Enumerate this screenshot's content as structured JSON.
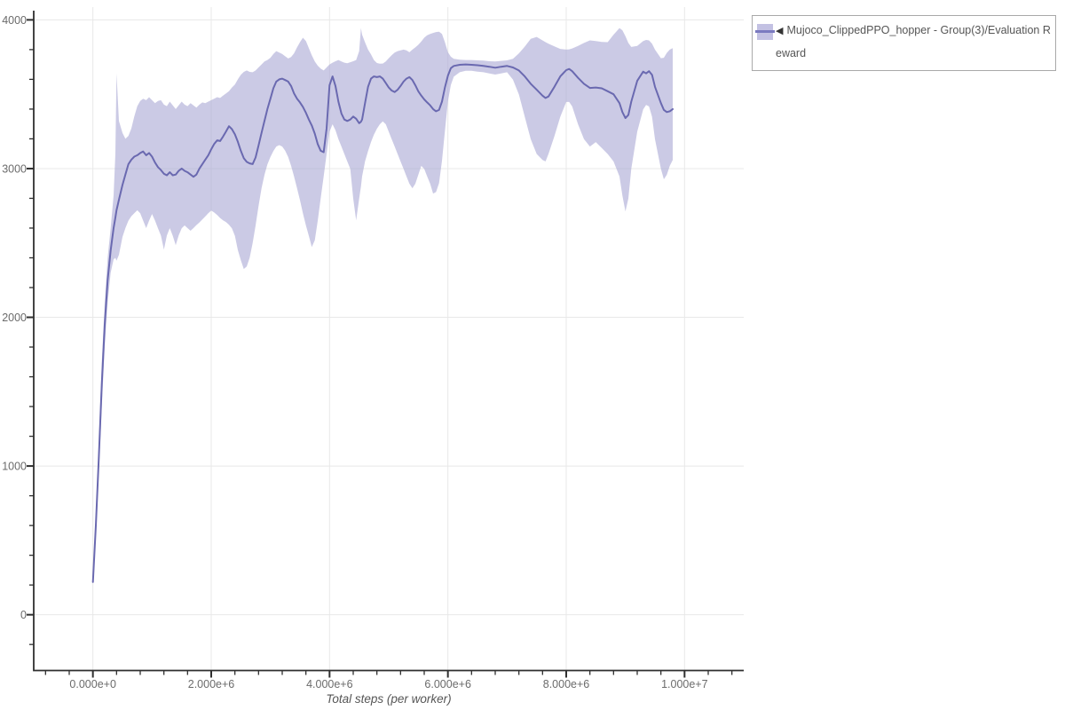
{
  "colors": {
    "mean_line": "#6a69b0",
    "band_fill": "#a8a6d3",
    "band_opacity": 0.6,
    "legend_swatch_fill": "#c3c1e3",
    "legend_swatch_line": "#7b7ac0",
    "grid": "#e8e8e8",
    "axis": "#2f2f2f",
    "tick_label": "#6b6b6b",
    "legend_border": "#a9a9a9",
    "legend_text": "#555555"
  },
  "legend": {
    "marker": "◀",
    "label": "Mujoco_ClippedPPO_hopper - Group(3)/Evaluation Reward"
  },
  "chart_data": {
    "type": "line",
    "title": "",
    "xlabel": "Total steps (per worker)",
    "ylabel": "",
    "grid": true,
    "legend_position": "top-right-outside",
    "x_multiplier": 1000000,
    "xlim_e6": [
      -1,
      11
    ],
    "ylim": [
      -375,
      4050
    ],
    "x_axis": {
      "tick_values_e6": [
        0,
        2,
        4,
        6,
        8,
        10
      ],
      "tick_labels": [
        "0.000e+0",
        "2.000e+6",
        "4.000e+6",
        "6.000e+6",
        "8.000e+6",
        "1.000e+7"
      ],
      "minor_step_e6": 0.4,
      "minor_range_e6": [
        -0.8,
        10.8
      ]
    },
    "y_axis": {
      "tick_values": [
        0,
        1000,
        2000,
        3000,
        4000
      ],
      "tick_labels": [
        "0",
        "1000",
        "2000",
        "3000",
        "4000"
      ],
      "minor_step": 200,
      "minor_range": [
        -200,
        4000
      ]
    },
    "series": [
      {
        "name": "Mujoco_ClippedPPO_hopper - Group(3)/Evaluation Reward",
        "style": "mean-with-confidence-band",
        "x_e6": [
          0,
          0.05,
          0.1,
          0.15,
          0.2,
          0.25,
          0.3,
          0.35,
          0.38,
          0.4,
          0.44,
          0.5,
          0.55,
          0.6,
          0.65,
          0.7,
          0.75,
          0.8,
          0.85,
          0.9,
          0.95,
          1.0,
          1.05,
          1.1,
          1.15,
          1.2,
          1.25,
          1.3,
          1.35,
          1.4,
          1.45,
          1.5,
          1.55,
          1.6,
          1.65,
          1.7,
          1.75,
          1.8,
          1.85,
          1.9,
          1.95,
          2.0,
          2.05,
          2.1,
          2.15,
          2.2,
          2.25,
          2.3,
          2.35,
          2.4,
          2.45,
          2.5,
          2.55,
          2.6,
          2.65,
          2.7,
          2.75,
          2.8,
          2.85,
          2.9,
          2.95,
          3.0,
          3.05,
          3.1,
          3.15,
          3.2,
          3.25,
          3.3,
          3.35,
          3.4,
          3.45,
          3.5,
          3.55,
          3.6,
          3.65,
          3.7,
          3.75,
          3.8,
          3.85,
          3.9,
          3.95,
          4.0,
          4.05,
          4.1,
          4.15,
          4.2,
          4.25,
          4.3,
          4.35,
          4.4,
          4.45,
          4.5,
          4.53,
          4.55,
          4.6,
          4.65,
          4.7,
          4.75,
          4.8,
          4.85,
          4.9,
          4.95,
          5.0,
          5.05,
          5.1,
          5.15,
          5.2,
          5.25,
          5.3,
          5.35,
          5.4,
          5.45,
          5.5,
          5.55,
          5.6,
          5.65,
          5.7,
          5.75,
          5.8,
          5.85,
          5.9,
          5.95,
          6.0,
          6.05,
          6.1,
          6.2,
          6.3,
          6.4,
          6.5,
          6.6,
          6.7,
          6.8,
          6.9,
          7.0,
          7.1,
          7.2,
          7.3,
          7.4,
          7.5,
          7.6,
          7.65,
          7.7,
          7.8,
          7.9,
          8.0,
          8.05,
          8.1,
          8.2,
          8.3,
          8.4,
          8.5,
          8.6,
          8.7,
          8.8,
          8.9,
          8.95,
          9.0,
          9.05,
          9.1,
          9.2,
          9.3,
          9.35,
          9.4,
          9.45,
          9.5,
          9.6,
          9.65,
          9.7,
          9.75,
          9.8
        ],
        "mean": [
          220,
          600,
          1050,
          1550,
          1950,
          2250,
          2450,
          2600,
          2670,
          2720,
          2790,
          2890,
          2960,
          3030,
          3060,
          3080,
          3090,
          3105,
          3115,
          3090,
          3105,
          3080,
          3040,
          3010,
          2990,
          2965,
          2955,
          2975,
          2955,
          2960,
          2985,
          3000,
          2985,
          2975,
          2960,
          2945,
          2960,
          3000,
          3030,
          3060,
          3090,
          3130,
          3165,
          3190,
          3185,
          3215,
          3250,
          3285,
          3265,
          3230,
          3180,
          3120,
          3070,
          3045,
          3035,
          3030,
          3075,
          3155,
          3240,
          3320,
          3400,
          3470,
          3540,
          3585,
          3600,
          3605,
          3595,
          3585,
          3555,
          3505,
          3470,
          3445,
          3415,
          3375,
          3330,
          3290,
          3235,
          3165,
          3120,
          3110,
          3270,
          3560,
          3620,
          3555,
          3450,
          3370,
          3330,
          3320,
          3330,
          3350,
          3335,
          3305,
          3315,
          3330,
          3440,
          3550,
          3605,
          3620,
          3615,
          3620,
          3605,
          3575,
          3545,
          3525,
          3515,
          3530,
          3555,
          3585,
          3605,
          3615,
          3595,
          3560,
          3520,
          3490,
          3465,
          3445,
          3425,
          3400,
          3385,
          3395,
          3450,
          3545,
          3625,
          3675,
          3690,
          3698,
          3700,
          3698,
          3695,
          3690,
          3685,
          3678,
          3685,
          3690,
          3680,
          3660,
          3620,
          3570,
          3530,
          3490,
          3475,
          3485,
          3550,
          3620,
          3662,
          3670,
          3655,
          3610,
          3570,
          3542,
          3545,
          3540,
          3520,
          3500,
          3440,
          3380,
          3340,
          3360,
          3450,
          3590,
          3652,
          3640,
          3655,
          3630,
          3550,
          3440,
          3395,
          3380,
          3385,
          3400
        ],
        "band_upper": [
          230,
          660,
          1150,
          1700,
          2100,
          2400,
          2600,
          2820,
          3100,
          3640,
          3320,
          3240,
          3200,
          3220,
          3270,
          3350,
          3420,
          3455,
          3470,
          3460,
          3480,
          3460,
          3440,
          3455,
          3460,
          3430,
          3420,
          3450,
          3425,
          3400,
          3425,
          3450,
          3430,
          3420,
          3440,
          3425,
          3410,
          3430,
          3445,
          3440,
          3450,
          3460,
          3470,
          3480,
          3475,
          3490,
          3505,
          3520,
          3545,
          3565,
          3600,
          3630,
          3650,
          3660,
          3650,
          3648,
          3660,
          3680,
          3700,
          3720,
          3730,
          3745,
          3770,
          3790,
          3780,
          3770,
          3755,
          3740,
          3750,
          3775,
          3815,
          3850,
          3880,
          3858,
          3810,
          3762,
          3720,
          3692,
          3672,
          3660,
          3680,
          3700,
          3712,
          3722,
          3730,
          3720,
          3712,
          3708,
          3715,
          3722,
          3730,
          3790,
          3945,
          3900,
          3848,
          3800,
          3768,
          3730,
          3710,
          3705,
          3706,
          3720,
          3742,
          3762,
          3780,
          3790,
          3795,
          3800,
          3795,
          3782,
          3800,
          3815,
          3832,
          3855,
          3880,
          3896,
          3905,
          3912,
          3918,
          3920,
          3905,
          3850,
          3782,
          3752,
          3738,
          3732,
          3730,
          3730,
          3728,
          3726,
          3722,
          3720,
          3724,
          3728,
          3738,
          3775,
          3820,
          3872,
          3885,
          3862,
          3850,
          3840,
          3822,
          3805,
          3800,
          3802,
          3808,
          3825,
          3845,
          3862,
          3858,
          3852,
          3850,
          3900,
          3945,
          3930,
          3890,
          3845,
          3818,
          3825,
          3858,
          3865,
          3862,
          3840,
          3800,
          3742,
          3745,
          3778,
          3800,
          3810
        ],
        "band_lower": [
          210,
          545,
          950,
          1400,
          1800,
          2100,
          2300,
          2390,
          2400,
          2380,
          2420,
          2540,
          2600,
          2650,
          2680,
          2700,
          2720,
          2700,
          2650,
          2600,
          2650,
          2695,
          2650,
          2598,
          2550,
          2455,
          2550,
          2600,
          2548,
          2485,
          2550,
          2598,
          2618,
          2600,
          2582,
          2600,
          2620,
          2638,
          2658,
          2678,
          2700,
          2718,
          2705,
          2688,
          2668,
          2652,
          2640,
          2622,
          2598,
          2548,
          2452,
          2385,
          2325,
          2342,
          2400,
          2500,
          2618,
          2748,
          2868,
          2958,
          3028,
          3078,
          3118,
          3148,
          3158,
          3148,
          3120,
          3078,
          3018,
          2948,
          2868,
          2788,
          2700,
          2618,
          2548,
          2472,
          2518,
          2648,
          2798,
          2948,
          3098,
          3248,
          3298,
          3258,
          3198,
          3148,
          3098,
          3048,
          2998,
          2798,
          2652,
          2798,
          2880,
          2948,
          3048,
          3118,
          3178,
          3228,
          3268,
          3298,
          3318,
          3298,
          3248,
          3198,
          3148,
          3098,
          3048,
          2998,
          2948,
          2898,
          2868,
          2898,
          2958,
          3018,
          2998,
          2948,
          2898,
          2832,
          2842,
          2902,
          3052,
          3252,
          3452,
          3562,
          3618,
          3648,
          3658,
          3658,
          3652,
          3648,
          3640,
          3632,
          3640,
          3648,
          3598,
          3498,
          3348,
          3198,
          3098,
          3058,
          3048,
          3098,
          3218,
          3348,
          3448,
          3448,
          3418,
          3298,
          3198,
          3148,
          3178,
          3138,
          3098,
          3048,
          2948,
          2818,
          2712,
          2798,
          2998,
          3248,
          3398,
          3428,
          3418,
          3348,
          3198,
          2998,
          2928,
          2958,
          3018,
          3058
        ]
      }
    ]
  }
}
